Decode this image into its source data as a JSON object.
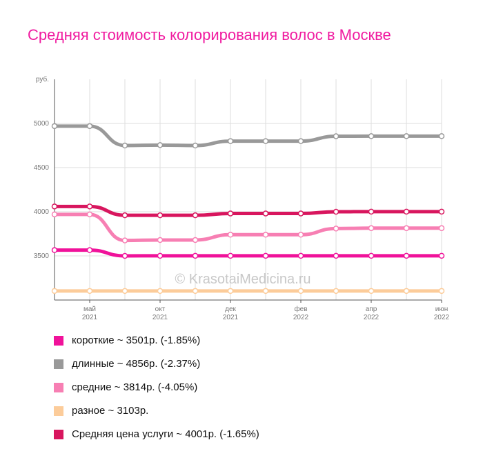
{
  "title": "Средняя стоимость колорирования волос в Москве",
  "watermark": "© KrasotaiMedicina.ru",
  "chart_data": {
    "type": "line",
    "title": "Средняя стоимость колорирования волос в Москве",
    "ylabel": "руб.",
    "ylim": [
      3000,
      5500
    ],
    "yticks": [
      3500,
      4000,
      4500,
      5000
    ],
    "x": [
      "2021-04",
      "2021-05",
      "2021-06",
      "2021-07",
      "2021-08",
      "2021-09",
      "2021-10",
      "2021-11",
      "2021-12",
      "2022-01",
      "2022-02",
      "2022-03"
    ],
    "xticks": [
      {
        "month": "май",
        "year": "2021",
        "x": "2021-05"
      },
      {
        "month": "окт",
        "year": "2021",
        "x": "2021-07"
      },
      {
        "month": "дек",
        "year": "2021",
        "x": "2021-09"
      },
      {
        "month": "фев",
        "year": "2022",
        "x": "2021-11"
      },
      {
        "month": "апр",
        "year": "2022",
        "x": "2022-01"
      },
      {
        "month": "июн",
        "year": "2022",
        "x": "2022-03"
      }
    ],
    "grid": true,
    "series": [
      {
        "name": "длинные",
        "color": "#999999",
        "values": [
          4970,
          4970,
          4750,
          4755,
          4750,
          4800,
          4800,
          4800,
          4855,
          4856,
          4856,
          4856
        ]
      },
      {
        "name": "средние",
        "color": "#f77fb3",
        "values": [
          3970,
          3970,
          3675,
          3680,
          3680,
          3740,
          3740,
          3740,
          3810,
          3814,
          3814,
          3814
        ]
      },
      {
        "name": "Средняя цена услуги",
        "color": "#d8165e",
        "values": [
          4060,
          4060,
          3960,
          3960,
          3960,
          3980,
          3980,
          3980,
          4000,
          4001,
          4001,
          4001
        ]
      },
      {
        "name": "короткие",
        "color": "#f0129a",
        "values": [
          3565,
          3565,
          3500,
          3501,
          3501,
          3501,
          3501,
          3501,
          3501,
          3501,
          3501,
          3501
        ]
      },
      {
        "name": "разное",
        "color": "#fccc9a",
        "values": [
          3103,
          3103,
          3103,
          3103,
          3103,
          3103,
          3103,
          3103,
          3103,
          3103,
          3103,
          3103
        ]
      }
    ]
  },
  "legend": [
    {
      "label": "короткие ~ 3501р. (-1.85%)",
      "color": "#f0129a"
    },
    {
      "label": "длинные ~ 4856р. (-2.37%)",
      "color": "#999999"
    },
    {
      "label": "средние ~ 3814р. (-4.05%)",
      "color": "#f77fb3"
    },
    {
      "label": "разное ~ 3103р.",
      "color": "#fccc9a"
    },
    {
      "label": "Средняя цена услуги ~ 4001р. (-1.65%)",
      "color": "#d8165e"
    }
  ]
}
